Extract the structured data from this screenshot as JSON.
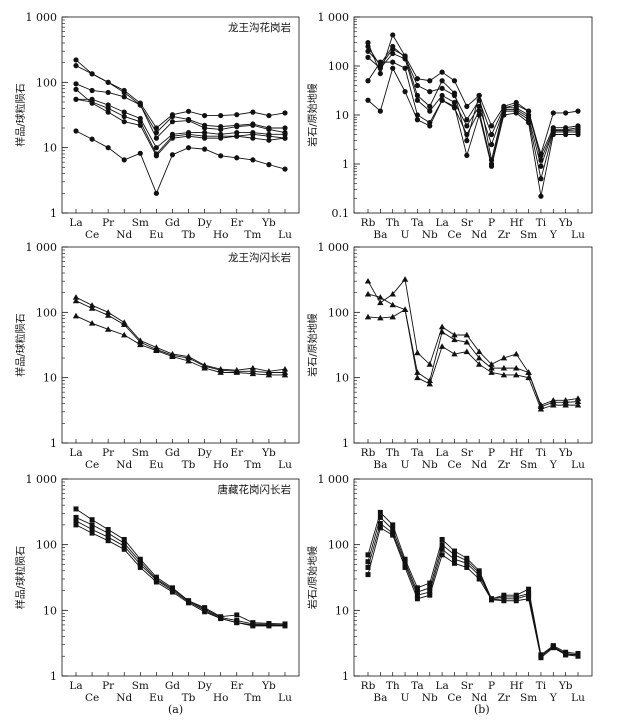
{
  "figure_labels": [
    "(a)",
    "(b)"
  ],
  "chart_data": [
    {
      "type": "line",
      "scale": "log",
      "title": "龙王沟花岗岩",
      "ylabel": "样品/球粒陨石",
      "ylim": [
        1,
        1000
      ],
      "yticks": [
        "1",
        "10",
        "100",
        "1 000"
      ],
      "categories": [
        "La",
        "Ce",
        "Pr",
        "Nd",
        "Sm",
        "Eu",
        "Gd",
        "Tb",
        "Dy",
        "Ho",
        "Er",
        "Tm",
        "Yb",
        "Lu"
      ],
      "marker": "circle",
      "series": [
        {
          "values": [
            220,
            135,
            100,
            75,
            48,
            20,
            32,
            36,
            31,
            31,
            32,
            35,
            31,
            34
          ]
        },
        {
          "values": [
            180,
            135,
            100,
            70,
            45,
            17,
            30,
            27,
            22,
            21,
            22,
            23,
            20,
            20
          ]
        },
        {
          "values": [
            95,
            75,
            70,
            60,
            45,
            14,
            25,
            26,
            20,
            19,
            21,
            22,
            19,
            17
          ]
        },
        {
          "values": [
            55,
            55,
            45,
            35,
            28,
            10,
            16,
            17,
            17,
            16,
            17,
            17,
            16,
            16
          ]
        },
        {
          "values": [
            55,
            50,
            40,
            30,
            25,
            8,
            15,
            16,
            15,
            15,
            15,
            16,
            15,
            14
          ]
        },
        {
          "values": [
            78,
            48,
            35,
            25,
            22,
            7.5,
            14,
            15,
            14,
            14,
            15,
            14,
            13,
            14
          ]
        },
        {
          "values": [
            18,
            13.5,
            10,
            6.5,
            8.2,
            2,
            7.8,
            10,
            9.5,
            7.5,
            7,
            6.5,
            5.5,
            4.7
          ]
        }
      ]
    },
    {
      "type": "line",
      "scale": "log",
      "ylabel": "岩石/原始地幔",
      "ylim": [
        0.1,
        1000
      ],
      "yticks": [
        "0.1",
        "1",
        "10",
        "100",
        "1 000"
      ],
      "categories": [
        "Rb",
        "Ba",
        "Th",
        "U",
        "Ta",
        "Nb",
        "La",
        "Ce",
        "Sr",
        "Nd",
        "P",
        "Zr",
        "Hf",
        "Sm",
        "Ti",
        "Y",
        "Yb",
        "Lu"
      ],
      "marker": "circle",
      "series": [
        {
          "values": [
            300,
            70,
            430,
            160,
            25,
            15,
            50,
            28,
            3,
            25,
            1.2,
            14,
            14,
            10,
            1.6,
            11,
            11,
            12
          ]
        },
        {
          "values": [
            250,
            100,
            220,
            160,
            55,
            50,
            75,
            50,
            15,
            25,
            6,
            15,
            18,
            12,
            1.5,
            5.5,
            5.5,
            6
          ]
        },
        {
          "values": [
            200,
            110,
            250,
            150,
            40,
            30,
            35,
            25,
            8,
            20,
            4,
            14,
            16,
            12,
            1.2,
            5,
            5,
            5.5
          ]
        },
        {
          "values": [
            150,
            90,
            180,
            140,
            20,
            12,
            25,
            18,
            6,
            15,
            2.5,
            13,
            13,
            9,
            0.9,
            4.8,
            4.8,
            5
          ]
        },
        {
          "values": [
            50,
            120,
            120,
            90,
            10,
            7,
            20,
            14,
            4,
            12,
            1.0,
            12,
            12,
            8,
            0.5,
            4.5,
            4.5,
            4.5
          ]
        },
        {
          "values": [
            20,
            12,
            90,
            30,
            8,
            6,
            20,
            15,
            1.5,
            10,
            0.9,
            10,
            11,
            7,
            0.22,
            4,
            4,
            4
          ]
        }
      ]
    },
    {
      "type": "line",
      "scale": "log",
      "title": "龙王沟闪长岩",
      "ylabel": "样品/球粒陨石",
      "ylim": [
        1,
        1000
      ],
      "yticks": [
        "1",
        "10",
        "100",
        "1 000"
      ],
      "categories": [
        "La",
        "Ce",
        "Pr",
        "Nd",
        "Sm",
        "Eu",
        "Gd",
        "Tb",
        "Dy",
        "Ho",
        "Er",
        "Tm",
        "Yb",
        "Lu"
      ],
      "marker": "triangle",
      "series": [
        {
          "values": [
            170,
            128,
            100,
            70,
            37,
            29,
            23,
            21,
            15.5,
            13.5,
            13,
            14,
            12.5,
            13.5
          ]
        },
        {
          "values": [
            150,
            115,
            90,
            65,
            35,
            27,
            22,
            20,
            15,
            13,
            12.5,
            12.5,
            12,
            12
          ]
        },
        {
          "values": [
            88,
            68,
            55,
            45,
            32,
            26,
            21,
            18,
            14,
            12,
            12,
            11.5,
            11,
            11
          ]
        }
      ]
    },
    {
      "type": "line",
      "scale": "log",
      "ylabel": "岩石/原始地幔",
      "ylim": [
        1,
        1000
      ],
      "yticks": [
        "1",
        "10",
        "100",
        "1 000"
      ],
      "categories": [
        "Rb",
        "Ba",
        "Th",
        "U",
        "Ta",
        "Nb",
        "La",
        "Ce",
        "Sr",
        "Nd",
        "P",
        "Zr",
        "Hf",
        "Sm",
        "Ti",
        "Y",
        "Yb",
        "Lu"
      ],
      "marker": "triangle",
      "series": [
        {
          "values": [
            300,
            140,
            190,
            320,
            24,
            16,
            60,
            45,
            45,
            25,
            16,
            20,
            23,
            12,
            3.8,
            4.5,
            4.5,
            4.8
          ]
        },
        {
          "values": [
            190,
            170,
            130,
            110,
            12,
            9,
            50,
            38,
            35,
            20,
            14,
            14,
            14,
            12,
            3.6,
            4.2,
            4.2,
            4.3
          ]
        },
        {
          "values": [
            85,
            82,
            85,
            110,
            10,
            8,
            30,
            23,
            25,
            16,
            12,
            11,
            11,
            10,
            3.3,
            3.8,
            3.8,
            3.8
          ]
        }
      ]
    },
    {
      "type": "line",
      "scale": "log",
      "title": "唐藏花岗闪长岩",
      "ylabel": "样品/球粒陨石",
      "ylim": [
        1,
        1000
      ],
      "yticks": [
        "1",
        "10",
        "100",
        "1 000"
      ],
      "categories": [
        "La",
        "Ce",
        "Pr",
        "Nd",
        "Sm",
        "Eu",
        "Gd",
        "Tb",
        "Dy",
        "Ho",
        "Er",
        "Tm",
        "Yb",
        "Lu"
      ],
      "marker": "square",
      "series": [
        {
          "values": [
            350,
            240,
            170,
            120,
            60,
            32,
            22,
            14,
            11,
            8,
            8.5,
            6.5,
            6.3,
            6.2
          ]
        },
        {
          "values": [
            260,
            200,
            150,
            105,
            55,
            30,
            21,
            14,
            10.5,
            7.8,
            7,
            6.2,
            6.1,
            6
          ]
        },
        {
          "values": [
            230,
            170,
            130,
            95,
            50,
            29,
            20,
            13.5,
            10,
            7.5,
            6.5,
            6,
            5.9,
            5.9
          ]
        },
        {
          "values": [
            200,
            150,
            115,
            85,
            45,
            27,
            19,
            13,
            9.5,
            7.5,
            6.5,
            5.8,
            5.8,
            5.8
          ]
        }
      ]
    },
    {
      "type": "line",
      "scale": "log",
      "ylabel": "岩石/原始地幔",
      "ylim": [
        1,
        1000
      ],
      "yticks": [
        "1",
        "10",
        "100",
        "1 000"
      ],
      "categories": [
        "Rb",
        "Ba",
        "Th",
        "U",
        "Ta",
        "Nb",
        "La",
        "Ce",
        "Sr",
        "Nd",
        "P",
        "Zr",
        "Hf",
        "Sm",
        "Ti",
        "Y",
        "Yb",
        "Lu"
      ],
      "marker": "square",
      "series": [
        {
          "values": [
            70,
            310,
            200,
            60,
            22,
            26,
            120,
            80,
            62,
            40,
            15,
            17,
            17,
            21,
            2.1,
            2.9,
            2.3,
            2.2
          ]
        },
        {
          "values": [
            55,
            260,
            170,
            55,
            19,
            22,
            100,
            70,
            57,
            37,
            15,
            16,
            16,
            18,
            2.0,
            2.8,
            2.2,
            2.1
          ]
        },
        {
          "values": [
            45,
            210,
            150,
            50,
            17,
            19,
            85,
            60,
            52,
            34,
            14.5,
            15,
            15,
            17,
            2.0,
            2.8,
            2.1,
            2.1
          ]
        },
        {
          "values": [
            35,
            180,
            140,
            45,
            15,
            17,
            70,
            52,
            45,
            30,
            14.5,
            14,
            14,
            15,
            1.9,
            2.7,
            2.1,
            2.0
          ]
        }
      ]
    }
  ]
}
